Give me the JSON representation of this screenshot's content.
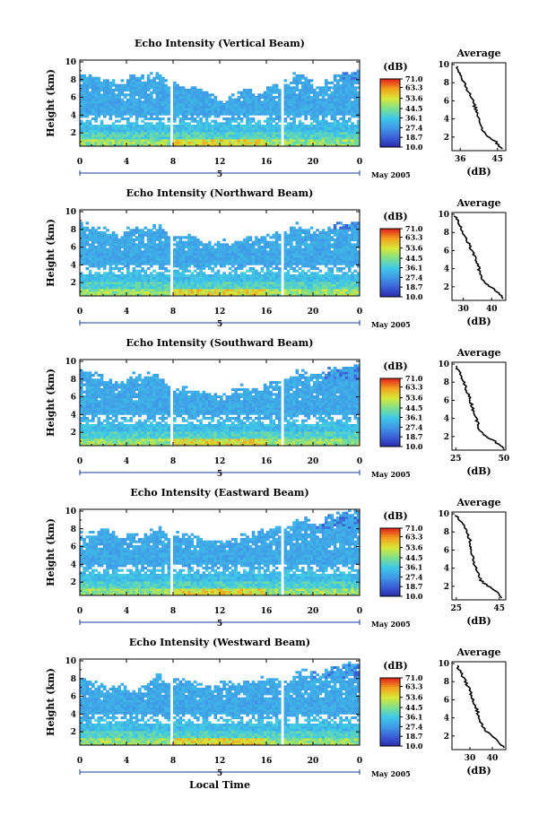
{
  "figure": {
    "xlabel": "Local Time",
    "date_label": "May 2005",
    "day_label": "5"
  },
  "colorbar": {
    "unit_label": "(dB)",
    "ticks": [
      "71.0",
      "63.3",
      "53.6",
      "44.5",
      "36.1",
      "27.4",
      "18.7",
      "10.0"
    ],
    "range": [
      10.0,
      71.0
    ],
    "colors": [
      "#2a2aa8",
      "#3c5fd6",
      "#3f9be6",
      "#3fc8e8",
      "#7fe08a",
      "#d8e83a",
      "#f2a21e",
      "#e0241c"
    ]
  },
  "chart_data": [
    {
      "type": "heatmap",
      "title": "Echo Intensity (Vertical Beam)",
      "ylabel": "Height (km)",
      "x_ticks": [
        "0",
        "4",
        "8",
        "12",
        "16",
        "20",
        "0"
      ],
      "y_ticks": [
        "2",
        "4",
        "6",
        "8",
        "10"
      ],
      "xlim": [
        0,
        24
      ],
      "ylim": [
        0.5,
        10.2
      ],
      "gaps": [
        [
          7.7,
          8.0
        ],
        [
          17.2,
          17.6
        ]
      ],
      "tops": [
        [
          0,
          8.6
        ],
        [
          1.5,
          8.3
        ],
        [
          2.2,
          8.0
        ],
        [
          3.5,
          7.5
        ],
        [
          4.5,
          8.7
        ],
        [
          5.5,
          8.1
        ],
        [
          6.8,
          8.8
        ],
        [
          7.6,
          7.8
        ],
        [
          8.1,
          7.5
        ],
        [
          9.5,
          7.3
        ],
        [
          10.5,
          6.8
        ],
        [
          11.5,
          6.0
        ],
        [
          12.5,
          5.5
        ],
        [
          13.5,
          6.5
        ],
        [
          14.5,
          7.0
        ],
        [
          15.5,
          6.2
        ],
        [
          16.5,
          7.4
        ],
        [
          17.8,
          7.6
        ],
        [
          18.5,
          8.5
        ],
        [
          19.5,
          8.0
        ],
        [
          20.5,
          7.0
        ],
        [
          21.5,
          8.2
        ],
        [
          22.5,
          8.8
        ],
        [
          24,
          9.0
        ]
      ],
      "profile": {
        "title": "Average",
        "xlabel": "(dB)",
        "xlim": [
          34,
          47
        ],
        "x_ticks": [
          36,
          45
        ],
        "x_tick_labels": [
          "36",
          "45"
        ],
        "heights": [
          9.8,
          9.0,
          8.0,
          7.0,
          6.0,
          5.5,
          5.0,
          4.5,
          4.0,
          3.5,
          3.0,
          2.5,
          2.0,
          1.5,
          1.0,
          0.7
        ],
        "values": [
          35.2,
          36.0,
          37.0,
          38.0,
          39.0,
          39.4,
          39.8,
          40.2,
          40.6,
          41.0,
          41.2,
          41.8,
          43.0,
          44.5,
          45.5,
          46.3
        ]
      }
    },
    {
      "type": "heatmap",
      "title": "Echo Intensity (Northward Beam)",
      "ylabel": "Height (km)",
      "x_ticks": [
        "0",
        "4",
        "8",
        "12",
        "16",
        "20",
        "0"
      ],
      "y_ticks": [
        "2",
        "4",
        "6",
        "8",
        "10"
      ],
      "xlim": [
        0,
        24
      ],
      "ylim": [
        0.5,
        10.2
      ],
      "gaps": [
        [
          7.7,
          8.0
        ],
        [
          17.2,
          17.6
        ]
      ],
      "tops": [
        [
          0,
          8.7
        ],
        [
          1.5,
          8.2
        ],
        [
          2.5,
          7.9
        ],
        [
          3.5,
          7.3
        ],
        [
          4.5,
          8.3
        ],
        [
          5.5,
          8.0
        ],
        [
          6.8,
          8.4
        ],
        [
          7.6,
          7.5
        ],
        [
          8.1,
          7.2
        ],
        [
          9.5,
          7.1
        ],
        [
          10.5,
          6.8
        ],
        [
          11.5,
          6.5
        ],
        [
          12.5,
          6.5
        ],
        [
          13.5,
          6.8
        ],
        [
          14.5,
          7.2
        ],
        [
          15.5,
          7.0
        ],
        [
          16.5,
          7.6
        ],
        [
          17.8,
          7.8
        ],
        [
          18.5,
          8.5
        ],
        [
          19.5,
          8.1
        ],
        [
          20.5,
          7.6
        ],
        [
          21.5,
          8.4
        ],
        [
          22.5,
          8.6
        ],
        [
          24,
          8.8
        ]
      ],
      "profile": {
        "title": "Average",
        "xlabel": "(dB)",
        "xlim": [
          26,
          45
        ],
        "x_ticks": [
          30,
          40
        ],
        "x_tick_labels": [
          "30",
          "40"
        ],
        "heights": [
          9.8,
          9.0,
          8.0,
          7.0,
          6.0,
          5.0,
          4.5,
          4.0,
          3.5,
          3.0,
          2.5,
          2.0,
          1.5,
          1.0,
          0.7
        ],
        "values": [
          27.0,
          28.5,
          30.0,
          31.5,
          33.0,
          34.5,
          35.0,
          35.5,
          36.0,
          36.5,
          37.5,
          39.5,
          42.0,
          43.5,
          44.5
        ]
      }
    },
    {
      "type": "heatmap",
      "title": "Echo Intensity (Southward Beam)",
      "ylabel": "Height (km)",
      "x_ticks": [
        "0",
        "4",
        "8",
        "12",
        "16",
        "20",
        "0"
      ],
      "y_ticks": [
        "2",
        "4",
        "6",
        "8",
        "10"
      ],
      "xlim": [
        0,
        24
      ],
      "ylim": [
        0.5,
        10.2
      ],
      "gaps": [
        [
          7.7,
          8.0
        ],
        [
          17.2,
          17.6
        ]
      ],
      "tops": [
        [
          0,
          8.9
        ],
        [
          1.5,
          8.5
        ],
        [
          2.5,
          8.0
        ],
        [
          3.5,
          7.5
        ],
        [
          4.5,
          8.6
        ],
        [
          5.5,
          8.2
        ],
        [
          6.8,
          8.9
        ],
        [
          7.6,
          7.4
        ],
        [
          8.1,
          6.8
        ],
        [
          9.5,
          7.0
        ],
        [
          10.5,
          6.6
        ],
        [
          11.5,
          6.2
        ],
        [
          12.5,
          6.0
        ],
        [
          13.5,
          7.0
        ],
        [
          14.5,
          7.1
        ],
        [
          15.5,
          6.8
        ],
        [
          16.5,
          7.5
        ],
        [
          17.8,
          8.0
        ],
        [
          18.5,
          9.0
        ],
        [
          19.5,
          8.8
        ],
        [
          20.5,
          8.2
        ],
        [
          21.5,
          9.2
        ],
        [
          22.5,
          9.5
        ],
        [
          24,
          9.7
        ]
      ],
      "profile": {
        "title": "Average",
        "xlabel": "(dB)",
        "xlim": [
          23,
          51
        ],
        "x_ticks": [
          25,
          50
        ],
        "x_tick_labels": [
          "25",
          "50"
        ],
        "heights": [
          9.8,
          9.0,
          8.0,
          7.0,
          6.0,
          5.0,
          4.5,
          4.0,
          3.5,
          3.0,
          2.5,
          2.0,
          1.5,
          1.0,
          0.7
        ],
        "values": [
          25.0,
          27.0,
          29.0,
          31.0,
          32.5,
          34.0,
          35.0,
          35.5,
          36.5,
          37.0,
          38.5,
          41.0,
          45.0,
          48.0,
          49.5
        ]
      }
    },
    {
      "type": "heatmap",
      "title": "Echo Intensity (Eastward Beam)",
      "ylabel": "Height (km)",
      "x_ticks": [
        "0",
        "4",
        "8",
        "12",
        "16",
        "20",
        "0"
      ],
      "y_ticks": [
        "2",
        "4",
        "6",
        "8",
        "10"
      ],
      "xlim": [
        0,
        24
      ],
      "ylim": [
        0.5,
        10.2
      ],
      "gaps": [
        [
          7.7,
          8.0
        ],
        [
          17.2,
          17.6
        ]
      ],
      "tops": [
        [
          0,
          7.3
        ],
        [
          1.5,
          7.8
        ],
        [
          2.5,
          8.0
        ],
        [
          3.5,
          7.0
        ],
        [
          4.5,
          7.4
        ],
        [
          5.5,
          7.0
        ],
        [
          6.8,
          8.3
        ],
        [
          7.6,
          7.0
        ],
        [
          8.1,
          7.4
        ],
        [
          9.5,
          7.2
        ],
        [
          10.5,
          6.9
        ],
        [
          11.5,
          6.5
        ],
        [
          12.5,
          6.6
        ],
        [
          13.5,
          7.0
        ],
        [
          14.5,
          7.3
        ],
        [
          15.5,
          7.6
        ],
        [
          16.5,
          8.3
        ],
        [
          17.8,
          8.1
        ],
        [
          18.5,
          8.8
        ],
        [
          19.5,
          9.0
        ],
        [
          20.5,
          8.5
        ],
        [
          21.5,
          9.4
        ],
        [
          22.5,
          9.8
        ],
        [
          24,
          10.0
        ]
      ],
      "profile": {
        "title": "Average",
        "xlabel": "(dB)",
        "xlim": [
          23,
          48
        ],
        "x_ticks": [
          25,
          45
        ],
        "x_tick_labels": [
          "25",
          "45"
        ],
        "heights": [
          9.8,
          9.0,
          8.0,
          7.0,
          6.0,
          5.0,
          4.5,
          4.0,
          3.5,
          3.0,
          2.5,
          2.0,
          1.5,
          1.0,
          0.7
        ],
        "values": [
          25.0,
          27.5,
          30.0,
          31.5,
          32.0,
          33.0,
          33.5,
          34.0,
          35.0,
          35.5,
          37.0,
          40.0,
          43.5,
          45.5,
          46.5
        ]
      }
    },
    {
      "type": "heatmap",
      "title": "Echo Intensity (Westward Beam)",
      "ylabel": "Height (km)",
      "x_ticks": [
        "0",
        "4",
        "8",
        "12",
        "16",
        "20",
        "0"
      ],
      "y_ticks": [
        "2",
        "4",
        "6",
        "8",
        "10"
      ],
      "xlim": [
        0,
        24
      ],
      "ylim": [
        0.5,
        10.2
      ],
      "gaps": [
        [
          7.7,
          8.0
        ],
        [
          17.2,
          17.6
        ]
      ],
      "tops": [
        [
          0,
          7.8
        ],
        [
          1.5,
          7.5
        ],
        [
          2.5,
          7.0
        ],
        [
          3.5,
          7.2
        ],
        [
          4.5,
          6.5
        ],
        [
          5.5,
          7.0
        ],
        [
          6.8,
          8.5
        ],
        [
          7.6,
          7.4
        ],
        [
          8.1,
          7.8
        ],
        [
          9.5,
          7.6
        ],
        [
          10.5,
          7.2
        ],
        [
          11.5,
          7.0
        ],
        [
          12.5,
          7.5
        ],
        [
          13.5,
          7.3
        ],
        [
          14.5,
          7.6
        ],
        [
          15.5,
          8.0
        ],
        [
          16.5,
          8.2
        ],
        [
          17.8,
          7.5
        ],
        [
          18.5,
          8.6
        ],
        [
          19.5,
          8.8
        ],
        [
          20.5,
          8.3
        ],
        [
          21.5,
          9.2
        ],
        [
          22.5,
          9.6
        ],
        [
          24,
          9.9
        ]
      ],
      "profile": {
        "title": "Average",
        "xlabel": "(dB)",
        "xlim": [
          22,
          46
        ],
        "x_ticks": [
          30,
          40
        ],
        "x_tick_labels": [
          "30",
          "40"
        ],
        "heights": [
          9.8,
          9.0,
          8.0,
          7.0,
          6.0,
          5.0,
          4.5,
          4.0,
          3.5,
          3.0,
          2.5,
          2.0,
          1.5,
          1.0,
          0.7
        ],
        "values": [
          24.0,
          26.0,
          28.0,
          30.0,
          31.5,
          33.0,
          33.5,
          34.0,
          35.0,
          36.0,
          37.5,
          40.0,
          42.5,
          44.0,
          45.0
        ]
      }
    }
  ]
}
